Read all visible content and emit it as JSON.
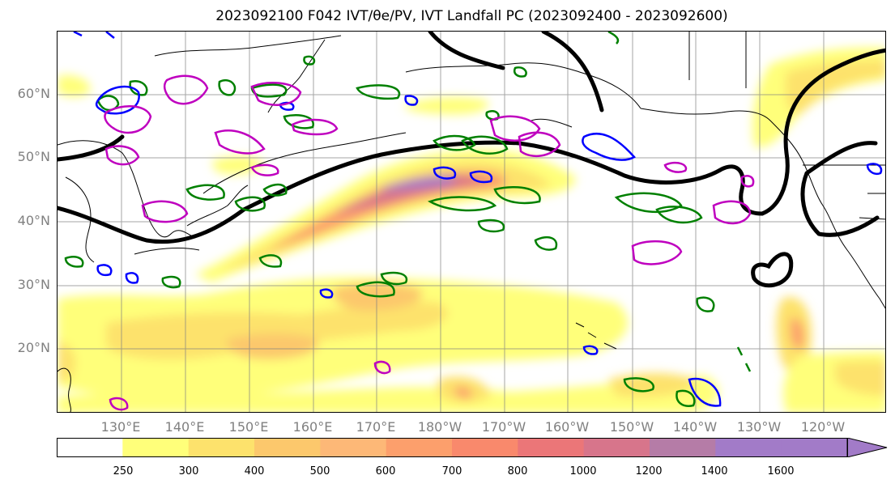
{
  "title": "2023092100 F042 IVT/θe/PV, IVT Landfall PC (2023092400 - 2023092600)",
  "map": {
    "lat_labels": [
      "60°N",
      "50°N",
      "40°N",
      "30°N",
      "20°N"
    ],
    "lon_labels": [
      "130°E",
      "140°E",
      "150°E",
      "160°E",
      "170°E",
      "180°W",
      "170°W",
      "160°W",
      "150°W",
      "140°W",
      "130°W",
      "120°W"
    ]
  },
  "colorbar": {
    "ticks": [
      "250",
      "300",
      "400",
      "500",
      "600",
      "700",
      "800",
      "1000",
      "1200",
      "1400",
      "1600"
    ],
    "colors": [
      "#ffffff",
      "#ffff7a",
      "#fde26c",
      "#fcc86c",
      "#fdb877",
      "#fc9f6c",
      "#f9896c",
      "#eb7678",
      "#d7758b",
      "#b57ca7",
      "#a27bc8"
    ]
  },
  "colors": {
    "contour_black": "#000000",
    "contour_green": "#008000",
    "contour_blue": "#0000ff",
    "contour_magenta": "#bf00bf",
    "grid": "#808080",
    "tick_label": "#808080"
  }
}
